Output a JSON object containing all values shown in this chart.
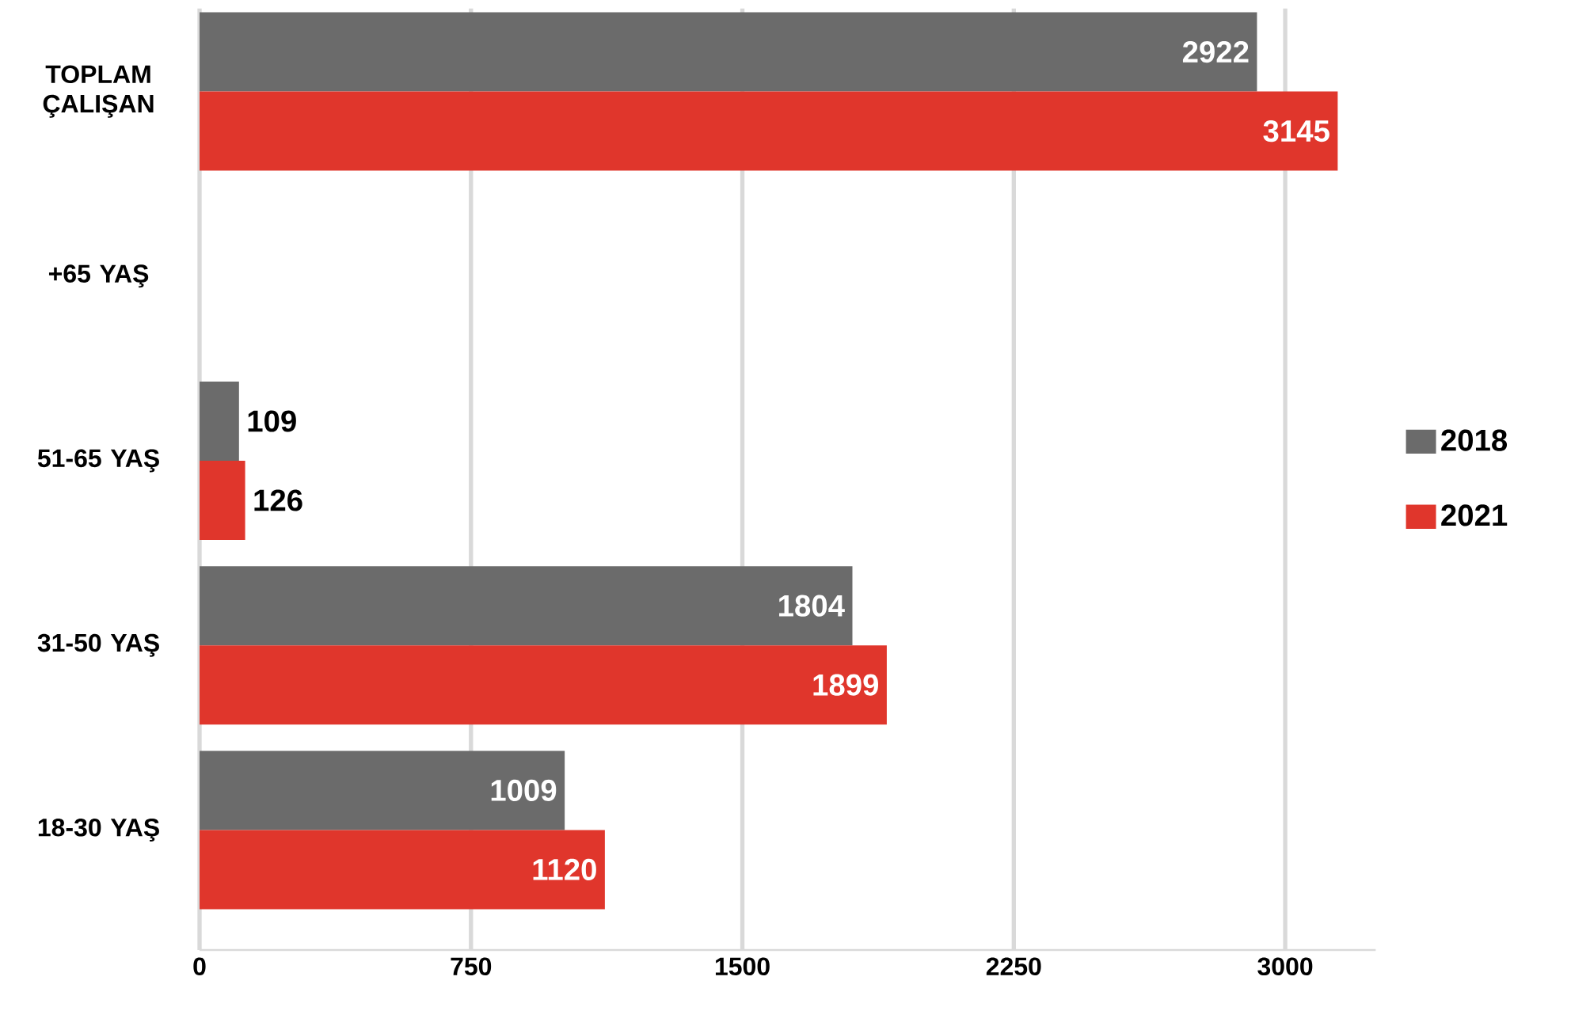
{
  "chart_data": {
    "type": "bar",
    "orientation": "horizontal",
    "categories": [
      "TOPLAM ÇALIŞAN",
      "+65 YAŞ",
      "51-65 YAŞ",
      "31-50 YAŞ",
      "18-30 YAŞ"
    ],
    "series": [
      {
        "name": "2018",
        "color": "#6b6b6b",
        "values": [
          2922,
          null,
          109,
          1804,
          1009
        ]
      },
      {
        "name": "2021",
        "color": "#e0362c",
        "values": [
          3145,
          null,
          126,
          1899,
          1120
        ]
      }
    ],
    "xlim": [
      0,
      3250
    ],
    "xticks": [
      0,
      750,
      1500,
      2250,
      3000
    ],
    "grid": "x",
    "legend": "right",
    "data_labels": true
  }
}
